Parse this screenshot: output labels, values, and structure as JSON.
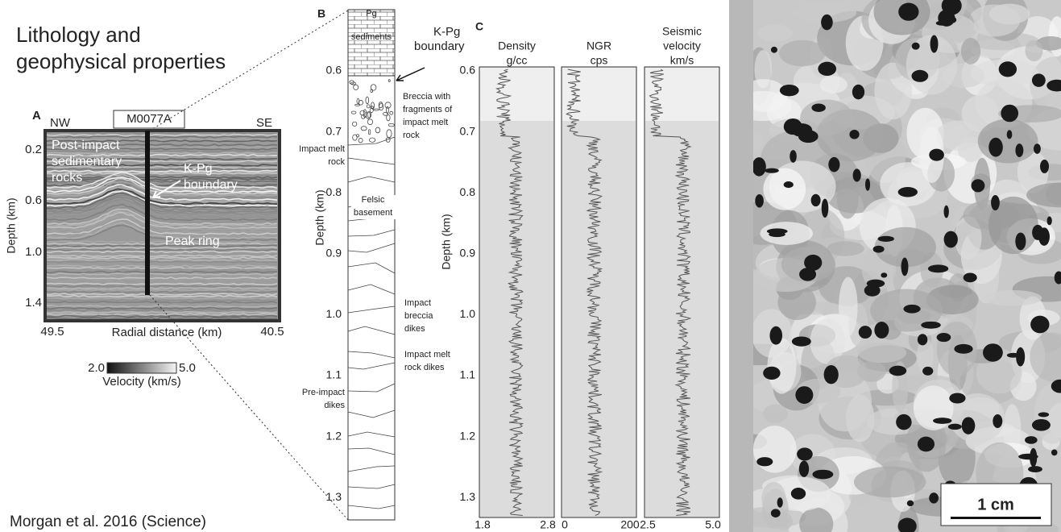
{
  "title": [
    "Lithology and",
    "geophysical properties"
  ],
  "citation": "Morgan et al. 2016 (Science)",
  "panel_a": {
    "label": "A",
    "well": "M0077A",
    "left_dir": "NW",
    "right_dir": "SE",
    "y_label": "Depth (km)",
    "y_ticks": [
      "0.2",
      "0.6",
      "1.0",
      "1.4"
    ],
    "x_label": "Radial distance (km)",
    "x_ticks": [
      "49.5",
      "40.5"
    ],
    "annotations": {
      "post_impact": [
        "Post-impact",
        "sedimentary",
        "rocks"
      ],
      "kpg": [
        "K-Pg",
        "boundary"
      ],
      "peak_ring": "Peak ring"
    },
    "colorbar": {
      "min": "2.0",
      "max": "5.0",
      "label": "Velocity (km/s)"
    }
  },
  "panel_b": {
    "label": "B",
    "y_label": "Depth (km)",
    "y_ticks": [
      "0.6",
      "0.7",
      "0.8",
      "0.9",
      "1.0",
      "1.1",
      "1.2",
      "1.3"
    ],
    "units": {
      "pg": [
        "Pg",
        "sediments"
      ],
      "kpg": [
        "K-Pg",
        "boundary"
      ],
      "breccia": [
        "Breccia with",
        "fragments of",
        "impact melt",
        "rock"
      ],
      "melt": [
        "Impact melt",
        "rock"
      ],
      "felsic": [
        "Felsic",
        "basement"
      ],
      "breccia_dikes": [
        "Impact",
        "breccia",
        "dikes"
      ],
      "melt_dikes": [
        "Impact melt",
        "rock dikes"
      ],
      "pre_impact": [
        "Pre-impact",
        "dikes"
      ]
    }
  },
  "panel_c": {
    "label": "C",
    "y_label": "Depth (km)",
    "y_ticks": [
      "0.6",
      "0.7",
      "0.8",
      "0.9",
      "1.0",
      "1.1",
      "1.2",
      "1.3"
    ],
    "tracks": [
      {
        "title": [
          "Density",
          "g/cc"
        ],
        "x_ticks": [
          "1.8",
          "2.8"
        ]
      },
      {
        "title": [
          "NGR",
          "cps"
        ],
        "x_ticks": [
          "0",
          "200"
        ]
      },
      {
        "title": [
          "Seismic",
          "velocity",
          "km/s"
        ],
        "x_ticks": [
          "2.5",
          "5.0"
        ]
      }
    ]
  },
  "photo": {
    "scale_bar": "1 cm"
  }
}
